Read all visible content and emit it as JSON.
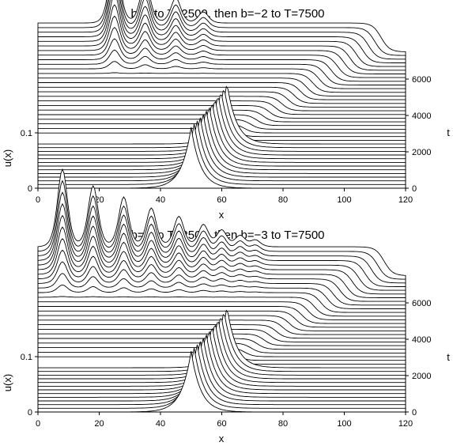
{
  "chart_data": [
    {
      "type": "line",
      "title": "b=0 to T=2500, then b=−2 to T=7500",
      "xlabel": "x",
      "ylabel": "u(x)",
      "tlabel": "t",
      "xlim": [
        0,
        120
      ],
      "x_ticks": [
        "0",
        "20",
        "40",
        "60",
        "80",
        "100",
        "120"
      ],
      "y_ticks": [
        {
          "value": 0,
          "label": "0"
        },
        {
          "value": 0.1,
          "label": "0.1"
        }
      ],
      "t_ticks": [
        "0",
        "2000",
        "4000",
        "6000"
      ],
      "t_range": [
        0,
        7500
      ],
      "n_traces": 38,
      "b_after": -2,
      "phase1": {
        "T": 2500,
        "peak_start_x": 50,
        "peak_end_x": 62,
        "amplitude": 0.11,
        "width": 5.0
      },
      "phase2": {
        "T": 7500,
        "front_end_x": 112,
        "released_peaks_x": [
          25,
          35,
          45,
          54
        ],
        "released_amps": [
          0.135,
          0.075,
          0.045,
          0.02
        ],
        "plateau_end": 0.04
      }
    },
    {
      "type": "line",
      "title": "b=0 to T=2500, then b=−3 to T=7500",
      "xlabel": "x",
      "ylabel": "u(x)",
      "tlabel": "t",
      "xlim": [
        0,
        120
      ],
      "x_ticks": [
        "0",
        "20",
        "40",
        "60",
        "80",
        "100",
        "120"
      ],
      "y_ticks": [
        {
          "value": 0,
          "label": "0"
        },
        {
          "value": 0.1,
          "label": "0.1"
        }
      ],
      "t_ticks": [
        "0",
        "2000",
        "4000",
        "6000"
      ],
      "t_range": [
        0,
        7500
      ],
      "n_traces": 38,
      "b_after": -3,
      "phase1": {
        "T": 2500,
        "peak_start_x": 50,
        "peak_end_x": 62,
        "amplitude": 0.11,
        "width": 5.0
      },
      "phase2": {
        "T": 7500,
        "front_end_x": 113,
        "released_peaks_x": [
          8,
          18,
          28,
          37,
          46,
          54,
          60,
          66,
          71
        ],
        "released_amps": [
          0.14,
          0.11,
          0.09,
          0.07,
          0.055,
          0.04,
          0.03,
          0.02,
          0.012
        ],
        "plateau_end": 0.04
      }
    }
  ]
}
